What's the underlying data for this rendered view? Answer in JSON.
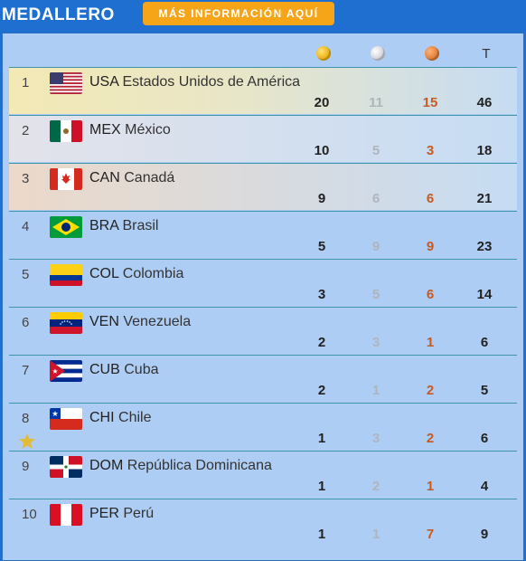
{
  "header": {
    "title": "MEDALLERO",
    "info_button": "MÁS INFORMACIÓN AQUÍ"
  },
  "columns": {
    "gold_icon": "gold-medal-icon",
    "silver_icon": "silver-medal-icon",
    "bronze_icon": "bronze-medal-icon",
    "total_label": "T"
  },
  "colors": {
    "header_blue": "#1f6fd1",
    "panel_bg": "#aecdf4",
    "button_orange": "#f7a518",
    "silver_number": "#b0b4bd",
    "bronze_number": "#c75a22"
  },
  "rows": [
    {
      "rank": "1",
      "code": "USA",
      "name": "Estados Unidos de América",
      "gold": "20",
      "silver": "11",
      "bronze": "15",
      "total": "46"
    },
    {
      "rank": "2",
      "code": "MEX",
      "name": "México",
      "gold": "10",
      "silver": "5",
      "bronze": "3",
      "total": "18"
    },
    {
      "rank": "3",
      "code": "CAN",
      "name": "Canadá",
      "gold": "9",
      "silver": "6",
      "bronze": "6",
      "total": "21"
    },
    {
      "rank": "4",
      "code": "BRA",
      "name": "Brasil",
      "gold": "5",
      "silver": "9",
      "bronze": "9",
      "total": "23"
    },
    {
      "rank": "5",
      "code": "COL",
      "name": "Colombia",
      "gold": "3",
      "silver": "5",
      "bronze": "6",
      "total": "14"
    },
    {
      "rank": "6",
      "code": "VEN",
      "name": "Venezuela",
      "gold": "2",
      "silver": "3",
      "bronze": "1",
      "total": "6"
    },
    {
      "rank": "7",
      "code": "CUB",
      "name": "Cuba",
      "gold": "2",
      "silver": "1",
      "bronze": "2",
      "total": "5"
    },
    {
      "rank": "8",
      "code": "CHI",
      "name": "Chile",
      "gold": "1",
      "silver": "3",
      "bronze": "2",
      "total": "6"
    },
    {
      "rank": "9",
      "code": "DOM",
      "name": "República Dominicana",
      "gold": "1",
      "silver": "2",
      "bronze": "1",
      "total": "4"
    },
    {
      "rank": "10",
      "code": "PER",
      "name": "Perú",
      "gold": "1",
      "silver": "1",
      "bronze": "7",
      "total": "9"
    }
  ]
}
